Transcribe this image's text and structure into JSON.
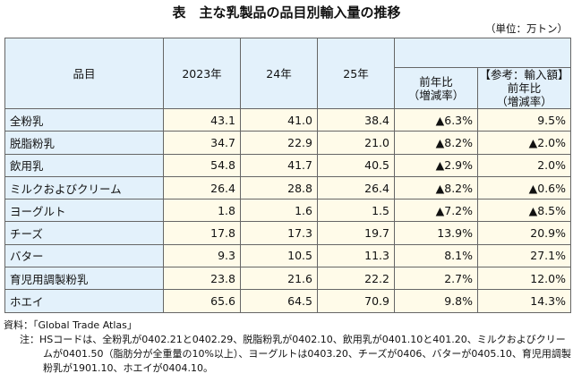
{
  "title": "表　主な乳製品の品目別輸入量の推移",
  "unit": "（単位：万トン）",
  "headers": {
    "item": "品目",
    "y2023": "2023年",
    "y24": "24年",
    "y25": "25年",
    "yoy": "前年比\n（増減率）",
    "ref1": "【参考：輸入額】",
    "ref2": "前年比",
    "ref3": "（増減率）",
    "yoy1": "前年比",
    "yoy2": "（増減率）"
  },
  "rows": [
    {
      "name": "全粉乳",
      "v2023": "43.1",
      "v24": "41.0",
      "v25": "38.4",
      "yoy": "▲6.3%",
      "value_yoy": "9.5%"
    },
    {
      "name": "脱脂粉乳",
      "v2023": "34.7",
      "v24": "22.9",
      "v25": "21.0",
      "yoy": "▲8.2%",
      "value_yoy": "▲2.0%"
    },
    {
      "name": "飲用乳",
      "v2023": "54.8",
      "v24": "41.7",
      "v25": "40.5",
      "yoy": "▲2.9%",
      "value_yoy": "2.0%"
    },
    {
      "name": "ミルクおよびクリーム",
      "v2023": "26.4",
      "v24": "28.8",
      "v25": "26.4",
      "yoy": "▲8.2%",
      "value_yoy": "▲0.6%"
    },
    {
      "name": "ヨーグルト",
      "v2023": "1.8",
      "v24": "1.6",
      "v25": "1.5",
      "yoy": "▲7.2%",
      "value_yoy": "▲8.5%"
    },
    {
      "name": "チーズ",
      "v2023": "17.8",
      "v24": "17.3",
      "v25": "19.7",
      "yoy": "13.9%",
      "value_yoy": "20.9%"
    },
    {
      "name": "バター",
      "v2023": "9.3",
      "v24": "10.5",
      "v25": "11.3",
      "yoy": "8.1%",
      "value_yoy": "27.1%"
    },
    {
      "name": "育児用調製粉乳",
      "v2023": "23.8",
      "v24": "21.6",
      "v25": "22.2",
      "yoy": "2.7%",
      "value_yoy": "12.0%"
    },
    {
      "name": "ホエイ",
      "v2023": "65.6",
      "v24": "64.5",
      "v25": "70.9",
      "yoy": "9.8%",
      "value_yoy": "14.3%"
    }
  ],
  "source": "資料：「Global Trade Atlas」",
  "note": "注：HSコードは、全粉乳が0402.21と0402.29、脱脂粉乳が0402.10、飲用乳が0401.10と401.20、ミルクおよびクリームが0401.50（脂肪分が全重量の10%以上）、ヨーグルトは0403.20、チーズが0406、バターが0405.10、育児用調製粉乳が1901.10、ホエイが0404.10。"
}
